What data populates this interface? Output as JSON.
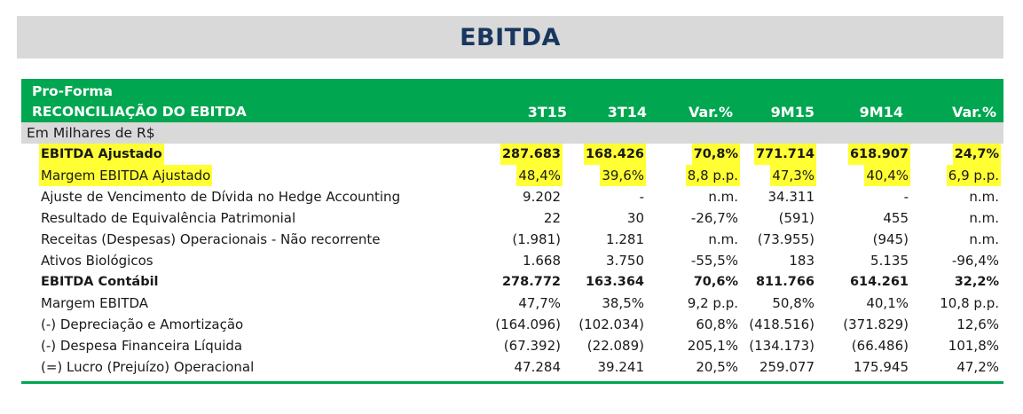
{
  "banner": {
    "title": "EBITDA"
  },
  "header": {
    "line1": "Pro-Forma",
    "line2": "RECONCILIAÇÃO DO EBITDA",
    "columns": [
      "3T15",
      "3T14",
      "Var.%",
      "9M15",
      "9M14",
      "Var.%"
    ]
  },
  "units_label": "Em Milhares de R$",
  "rows": [
    {
      "label": "EBITDA Ajustado",
      "values": [
        "287.683",
        "168.426",
        "70,8%",
        "771.714",
        "618.907",
        "24,7%"
      ]
    },
    {
      "label": "Margem EBITDA Ajustado",
      "values": [
        "48,4%",
        "39,6%",
        "8,8 p.p.",
        "47,3%",
        "40,4%",
        "6,9 p.p."
      ]
    },
    {
      "label": "Ajuste de Vencimento de Dívida no Hedge Accounting",
      "values": [
        "9.202",
        "-",
        "n.m.",
        "34.311",
        "-",
        "n.m."
      ]
    },
    {
      "label": "Resultado de Equivalência Patrimonial",
      "values": [
        "22",
        "30",
        "-26,7%",
        "(591)",
        "455",
        "n.m."
      ]
    },
    {
      "label": "Receitas (Despesas) Operacionais - Não recorrente",
      "values": [
        "(1.981)",
        "1.281",
        "n.m.",
        "(73.955)",
        "(945)",
        "n.m."
      ]
    },
    {
      "label": "Ativos Biológicos",
      "values": [
        "1.668",
        "3.750",
        "-55,5%",
        "183",
        "5.135",
        "-96,4%"
      ]
    },
    {
      "label": "EBITDA Contábil",
      "values": [
        "278.772",
        "163.364",
        "70,6%",
        "811.766",
        "614.261",
        "32,2%"
      ]
    },
    {
      "label": "Margem EBITDA",
      "values": [
        "47,7%",
        "38,5%",
        "9,2 p.p.",
        "50,8%",
        "40,1%",
        "10,8 p.p."
      ]
    },
    {
      "label": "(-) Depreciação e Amortização",
      "values": [
        "(164.096)",
        "(102.034)",
        "60,8%",
        "(418.516)",
        "(371.829)",
        "12,6%"
      ]
    },
    {
      "label": "(-) Despesa Financeira Líquida",
      "values": [
        "(67.392)",
        "(22.089)",
        "205,1%",
        "(134.173)",
        "(66.486)",
        "101,8%"
      ]
    },
    {
      "label": "(=) Lucro (Prejuízo) Operacional",
      "values": [
        "47.284",
        "39.241",
        "20,5%",
        "259.077",
        "175.945",
        "47,2%"
      ]
    }
  ],
  "colors": {
    "green": "#00a650",
    "title_blue": "#17375e",
    "gray": "#d9d9d9",
    "highlight": "#ffff33"
  }
}
